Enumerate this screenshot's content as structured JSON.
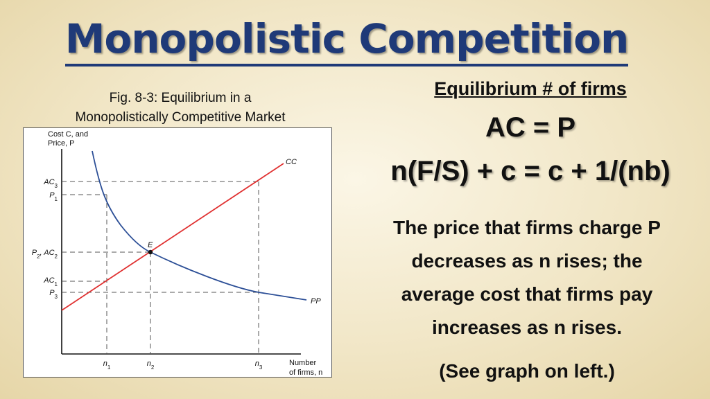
{
  "slide": {
    "title": "Monopolistic Competition",
    "caption_line1": "Fig. 8-3: Equilibrium in a",
    "caption_line2": "Monopolistically Competitive Market",
    "equilibrium_heading": "Equilibrium # of firms",
    "equation_main": "AC = P",
    "equation_formula": "n(F/S) + c = c + 1/(nb)",
    "explanation_line1": "The price that firms charge P",
    "explanation_line2": "decreases as n rises; the",
    "explanation_line3": "average cost that firms pay",
    "explanation_line4": "increases as n rises.",
    "see_graph": "(See graph on left.)"
  },
  "diagram": {
    "y_axis_label_line1": "Cost C, and",
    "y_axis_label_line2": "Price, P",
    "x_axis_label_line1": "Number",
    "x_axis_label_line2": "of firms, n",
    "curve_cc_label": "CC",
    "curve_pp_label": "PP",
    "point_e_label": "E",
    "y_labels": {
      "ac3": "AC3",
      "p1": "P1",
      "p2_ac2": "P2, AC2",
      "ac1": "AC1",
      "p3": "P3"
    },
    "x_labels": {
      "n1": "n1",
      "n2": "n2",
      "n3": "n3"
    },
    "colors": {
      "cc_curve": "#e03030",
      "pp_curve": "#2b4e96",
      "guide_lines": "#555555"
    }
  }
}
